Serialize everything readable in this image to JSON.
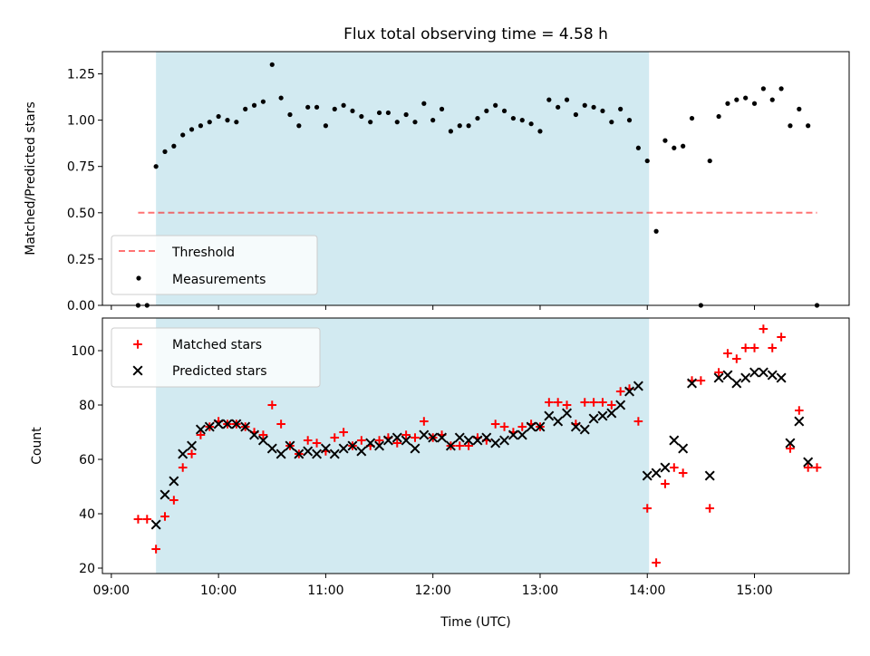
{
  "title": "Flux total observing time = 4.58 h",
  "colors": {
    "shade": "#add8e6",
    "threshold": "#ff0000",
    "matched": "#ff0000",
    "predicted": "#000000",
    "measurement": "#000000"
  },
  "chart_data": [
    {
      "type": "scatter",
      "panel": "top",
      "ylabel": "Matched/Predicted stars",
      "ylim": [
        0,
        1.37
      ],
      "yticks": [
        0.0,
        0.25,
        0.5,
        0.75,
        1.0,
        1.25
      ],
      "ytick_labels": [
        "0.00",
        "0.25",
        "0.50",
        "0.75",
        "1.00",
        "1.25"
      ],
      "xlim": [
        "08:55",
        "15:53"
      ],
      "shaded_span": [
        "09:25",
        "14:01"
      ],
      "grid": false,
      "legend_position": "lower-left",
      "threshold": {
        "name": "Threshold",
        "value": 0.5,
        "x_range": [
          "09:15",
          "15:35"
        ],
        "style": "dashed"
      },
      "series": [
        {
          "name": "Measurements",
          "x": [
            "09:15",
            "09:20",
            "09:25",
            "09:30",
            "09:35",
            "09:40",
            "09:45",
            "09:50",
            "09:55",
            "10:00",
            "10:05",
            "10:10",
            "10:15",
            "10:20",
            "10:25",
            "10:30",
            "10:35",
            "10:40",
            "10:45",
            "10:50",
            "10:55",
            "11:00",
            "11:05",
            "11:10",
            "11:15",
            "11:20",
            "11:25",
            "11:30",
            "11:35",
            "11:40",
            "11:45",
            "11:50",
            "11:55",
            "12:00",
            "12:05",
            "12:10",
            "12:15",
            "12:20",
            "12:25",
            "12:30",
            "12:35",
            "12:40",
            "12:45",
            "12:50",
            "12:55",
            "13:00",
            "13:05",
            "13:10",
            "13:15",
            "13:20",
            "13:25",
            "13:30",
            "13:35",
            "13:40",
            "13:45",
            "13:50",
            "13:55",
            "14:00",
            "14:05",
            "14:10",
            "14:15",
            "14:20",
            "14:25",
            "14:30",
            "14:35",
            "14:40",
            "14:45",
            "14:50",
            "14:55",
            "15:00",
            "15:05",
            "15:10",
            "15:15",
            "15:20",
            "15:25",
            "15:30",
            "15:35"
          ],
          "y": [
            0.0,
            0.0,
            0.75,
            0.83,
            0.86,
            0.92,
            0.95,
            0.97,
            0.99,
            1.02,
            1.0,
            0.99,
            1.06,
            1.08,
            1.1,
            1.3,
            1.12,
            1.03,
            0.97,
            1.07,
            1.07,
            0.97,
            1.06,
            1.08,
            1.05,
            1.02,
            0.99,
            1.04,
            1.04,
            0.99,
            1.03,
            0.99,
            1.09,
            1.0,
            1.06,
            0.94,
            0.97,
            0.97,
            1.01,
            1.05,
            1.08,
            1.05,
            1.01,
            1.0,
            0.98,
            0.94,
            1.11,
            1.07,
            1.11,
            1.03,
            1.08,
            1.07,
            1.05,
            0.99,
            1.06,
            1.0,
            0.85,
            0.78,
            0.4,
            0.89,
            0.85,
            0.86,
            1.01,
            0.0,
            0.78,
            1.02,
            1.09,
            1.11,
            1.12,
            1.09,
            1.17,
            1.11,
            1.17,
            0.97,
            1.06,
            0.97,
            0.0
          ]
        }
      ]
    },
    {
      "type": "scatter",
      "panel": "bottom",
      "xlabel": "Time (UTC)",
      "ylabel": "Count",
      "ylim": [
        18,
        112
      ],
      "yticks": [
        20,
        40,
        60,
        80,
        100
      ],
      "ytick_labels": [
        "20",
        "40",
        "60",
        "80",
        "100"
      ],
      "xlim": [
        "08:55",
        "15:53"
      ],
      "xticks": [
        "09:00",
        "10:00",
        "11:00",
        "12:00",
        "13:00",
        "14:00",
        "15:00"
      ],
      "xtick_labels": [
        "09:00",
        "10:00",
        "11:00",
        "12:00",
        "13:00",
        "14:00",
        "15:00"
      ],
      "shaded_span": [
        "09:25",
        "14:01"
      ],
      "grid": false,
      "legend_position": "upper-left",
      "x": [
        "09:15",
        "09:20",
        "09:25",
        "09:30",
        "09:35",
        "09:40",
        "09:45",
        "09:50",
        "09:55",
        "10:00",
        "10:05",
        "10:10",
        "10:15",
        "10:20",
        "10:25",
        "10:30",
        "10:35",
        "10:40",
        "10:45",
        "10:50",
        "10:55",
        "11:00",
        "11:05",
        "11:10",
        "11:15",
        "11:20",
        "11:25",
        "11:30",
        "11:35",
        "11:40",
        "11:45",
        "11:50",
        "11:55",
        "12:00",
        "12:05",
        "12:10",
        "12:15",
        "12:20",
        "12:25",
        "12:30",
        "12:35",
        "12:40",
        "12:45",
        "12:50",
        "12:55",
        "13:00",
        "13:05",
        "13:10",
        "13:15",
        "13:20",
        "13:25",
        "13:30",
        "13:35",
        "13:40",
        "13:45",
        "13:50",
        "13:55",
        "14:00",
        "14:05",
        "14:10",
        "14:15",
        "14:20",
        "14:25",
        "14:30",
        "14:35",
        "14:40",
        "14:45",
        "14:50",
        "14:55",
        "15:00",
        "15:05",
        "15:10",
        "15:15",
        "15:20",
        "15:25",
        "15:30",
        "15:35"
      ],
      "series": [
        {
          "name": "Matched stars",
          "marker": "plus",
          "y": [
            38,
            38,
            27,
            39,
            45,
            57,
            62,
            69,
            72,
            74,
            73,
            73,
            72,
            70,
            69,
            80,
            73,
            65,
            62,
            67,
            66,
            63,
            68,
            70,
            65,
            67,
            65,
            67,
            68,
            66,
            69,
            68,
            74,
            68,
            69,
            65,
            65,
            65,
            68,
            67,
            73,
            72,
            70,
            72,
            73,
            72,
            81,
            81,
            80,
            73,
            81,
            81,
            81,
            80,
            85,
            86,
            74,
            42,
            22,
            51,
            57,
            55,
            89,
            89,
            42,
            92,
            99,
            97,
            101,
            101,
            108,
            101,
            105,
            64,
            78,
            57,
            57
          ]
        },
        {
          "name": "Predicted stars",
          "marker": "x",
          "y": [
            null,
            null,
            36,
            47,
            52,
            62,
            65,
            71,
            72,
            73,
            73,
            73,
            72,
            69,
            67,
            64,
            62,
            65,
            62,
            63,
            62,
            64,
            62,
            64,
            65,
            63,
            66,
            65,
            67,
            68,
            67,
            64,
            69,
            68,
            68,
            65,
            68,
            67,
            67,
            68,
            66,
            67,
            69,
            69,
            72,
            72,
            76,
            74,
            77,
            72,
            71,
            75,
            76,
            77,
            80,
            85,
            87,
            54,
            55,
            57,
            67,
            64,
            88,
            null,
            54,
            90,
            91,
            88,
            90,
            92,
            92,
            91,
            90,
            66,
            74,
            59,
            null
          ]
        }
      ]
    }
  ]
}
